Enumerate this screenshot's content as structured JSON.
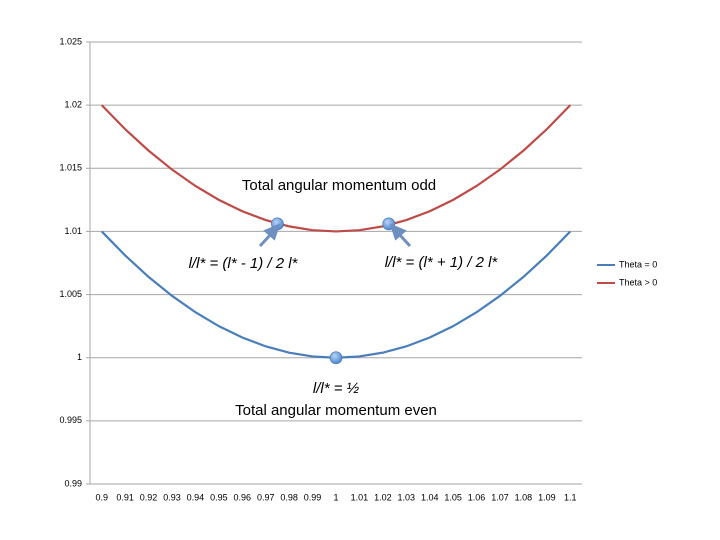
{
  "chart_data": {
    "type": "line",
    "x": [
      0.9,
      0.91,
      0.92,
      0.93,
      0.94,
      0.95,
      0.96,
      0.97,
      0.98,
      0.99,
      1,
      1.01,
      1.02,
      1.03,
      1.04,
      1.05,
      1.06,
      1.07,
      1.08,
      1.09,
      1.1
    ],
    "series": [
      {
        "name": "Theta = 0",
        "color": "#4a7ebb",
        "values": [
          1.01,
          1.0081,
          1.0064,
          1.0049,
          1.0036,
          1.0025,
          1.0016,
          1.0009,
          1.0004,
          1.0001,
          1,
          1.0001,
          1.0004,
          1.0009,
          1.0016,
          1.0025,
          1.0036,
          1.0049,
          1.0064,
          1.0081,
          1.01
        ]
      },
      {
        "name": "Theta > 0",
        "color": "#be4b48",
        "values": [
          1.02,
          1.0181,
          1.0164,
          1.0149,
          1.0136,
          1.0125,
          1.0116,
          1.0109,
          1.0104,
          1.0101,
          1.01,
          1.0101,
          1.0104,
          1.0109,
          1.0116,
          1.0125,
          1.0136,
          1.0149,
          1.0164,
          1.0181,
          1.02
        ]
      }
    ],
    "xlim": [
      0.895,
      1.105
    ],
    "xticks": [
      0.9,
      0.91,
      0.92,
      0.93,
      0.94,
      0.95,
      0.96,
      0.97,
      0.98,
      0.99,
      1,
      1.01,
      1.02,
      1.03,
      1.04,
      1.05,
      1.06,
      1.07,
      1.08,
      1.09,
      1.1
    ],
    "ylim": [
      0.99,
      1.025
    ],
    "yticks": [
      0.99,
      0.995,
      1,
      1.005,
      1.01,
      1.015,
      1.02,
      1.025
    ],
    "grid": true,
    "legend": "right",
    "markers": [
      {
        "x": 0.975,
        "y": 1.0106
      },
      {
        "x": 1.0225,
        "y": 1.0106
      },
      {
        "x": 1,
        "y": 1
      }
    ],
    "annotations": [
      "Total angular momentum odd",
      "l/l* = (l* - 1) / 2 l*",
      "l/l* = (l* + 1) / 2 l*",
      "l/l* = ½",
      "Total angular momentum even"
    ]
  }
}
